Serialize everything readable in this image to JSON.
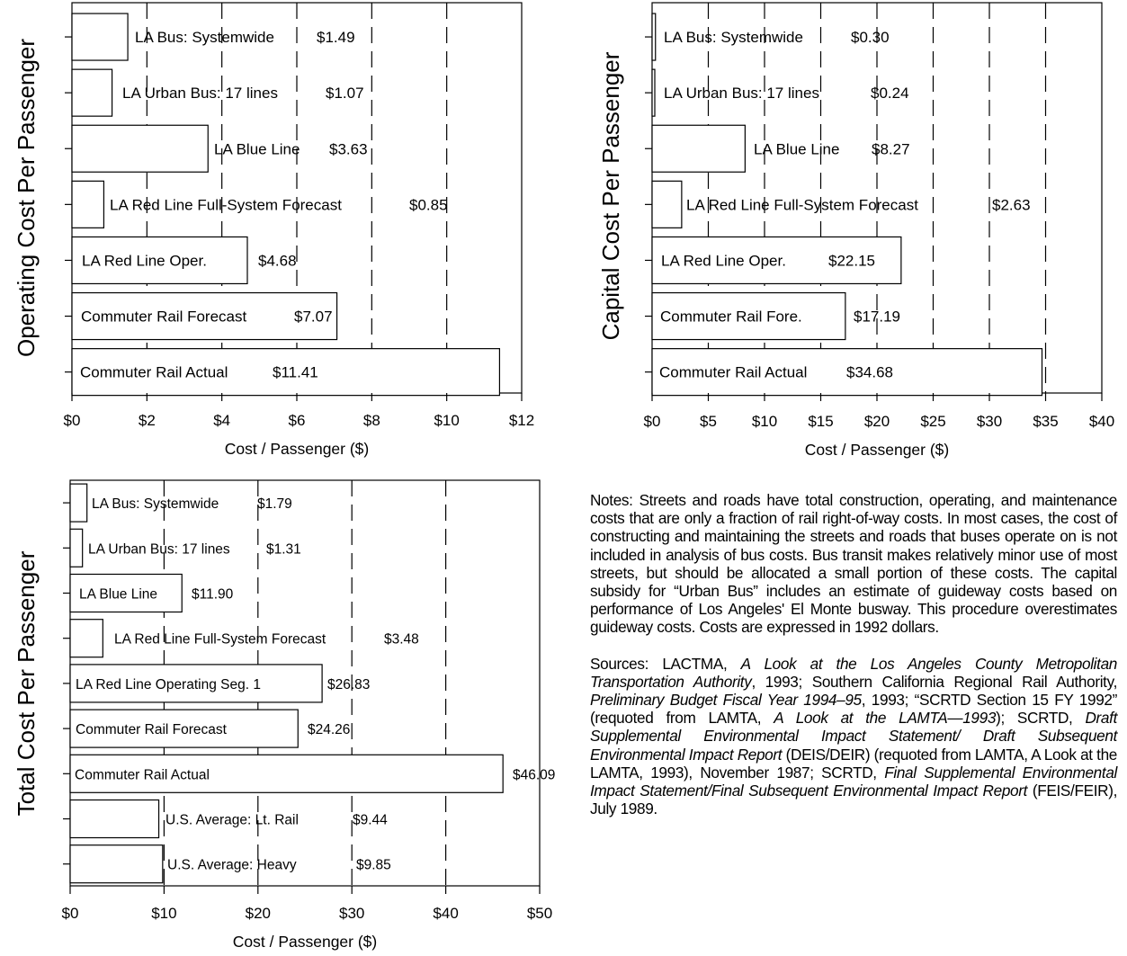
{
  "chart_data": [
    {
      "type": "bar",
      "orientation": "horizontal",
      "ylabel": "Operating Cost Per Passenger",
      "xlabel": "Cost / Passenger ($)",
      "xlim": [
        0,
        12
      ],
      "xticks": [
        "$0",
        "$2",
        "$4",
        "$6",
        "$8",
        "$10",
        "$12"
      ],
      "grid": "dashed vertical",
      "bars": [
        {
          "label": "LA Bus: Systemwide",
          "value": 1.49,
          "value_label": "$1.49"
        },
        {
          "label": "LA Urban Bus: 17 lines",
          "value": 1.07,
          "value_label": "$1.07"
        },
        {
          "label": "LA Blue Line",
          "value": 3.63,
          "value_label": "$3.63"
        },
        {
          "label": "LA Red Line Full-System Forecast",
          "value": 0.85,
          "value_label": "$0.85"
        },
        {
          "label": "LA Red Line Oper.",
          "value": 4.68,
          "value_label": "$4.68"
        },
        {
          "label": "Commuter Rail Forecast",
          "value": 7.07,
          "value_label": "$7.07"
        },
        {
          "label": "Commuter Rail Actual",
          "value": 11.41,
          "value_label": "$11.41"
        }
      ]
    },
    {
      "type": "bar",
      "orientation": "horizontal",
      "ylabel": "Capital Cost Per Passenger",
      "xlabel": "Cost / Passenger ($)",
      "xlim": [
        0,
        40
      ],
      "xticks": [
        "$0",
        "$5",
        "$10",
        "$15",
        "$20",
        "$25",
        "$30",
        "$35",
        "$40"
      ],
      "grid": "dashed vertical",
      "bars": [
        {
          "label": "LA Bus: Systemwide",
          "value": 0.3,
          "value_label": "$0.30"
        },
        {
          "label": "LA Urban Bus: 17 lines",
          "value": 0.24,
          "value_label": "$0.24"
        },
        {
          "label": "LA Blue Line",
          "value": 8.27,
          "value_label": "$8.27"
        },
        {
          "label": "LA Red Line Full-System Forecast",
          "value": 2.63,
          "value_label": "$2.63"
        },
        {
          "label": "LA Red Line Oper.",
          "value": 22.15,
          "value_label": "$22.15"
        },
        {
          "label": "Commuter Rail Fore.",
          "value": 17.19,
          "value_label": "$17.19"
        },
        {
          "label": "Commuter Rail Actual",
          "value": 34.68,
          "value_label": "$34.68"
        }
      ]
    },
    {
      "type": "bar",
      "orientation": "horizontal",
      "ylabel": "Total Cost Per Passenger",
      "xlabel": "Cost / Passenger ($)",
      "xlim": [
        0,
        50
      ],
      "xticks": [
        "$0",
        "$10",
        "$20",
        "$30",
        "$40",
        "$50"
      ],
      "grid": "dashed vertical",
      "bars": [
        {
          "label": "LA Bus: Systemwide",
          "value": 1.79,
          "value_label": "$1.79"
        },
        {
          "label": "LA Urban Bus: 17 lines",
          "value": 1.31,
          "value_label": "$1.31"
        },
        {
          "label": "LA Blue Line",
          "value": 11.9,
          "value_label": "$11.90"
        },
        {
          "label": "LA Red Line Full-System Forecast",
          "value": 3.48,
          "value_label": "$3.48"
        },
        {
          "label": "LA Red Line Operating Seg. 1",
          "value": 26.83,
          "value_label": "$26.83"
        },
        {
          "label": "Commuter Rail Forecast",
          "value": 24.26,
          "value_label": "$24.26"
        },
        {
          "label": "Commuter Rail Actual",
          "value": 46.09,
          "value_label": "$46.09"
        },
        {
          "label": "U.S. Average: Lt. Rail",
          "value": 9.44,
          "value_label": "$9.44"
        },
        {
          "label": "U.S. Average: Heavy",
          "value": 9.85,
          "value_label": "$9.85"
        }
      ]
    }
  ],
  "notes": {
    "text": "Notes: Streets and roads have total construction, operating, and maintenance costs that are only a fraction of rail right-of-way costs. In most cases, the cost of constructing and maintaining the streets and roads that buses operate on is not included in analysis of bus costs. Bus transit makes relatively minor use of most streets, but should be allocated a small portion of these costs. The capital subsidy for “Urban Bus” includes an estimate of guideway costs based on performance of Los Angeles' El Monte busway. This procedure overestimates guideway costs. Costs are expressed in 1992 dollars."
  },
  "sources": [
    {
      "text": "Sources: LACTMA, ",
      "italic": false
    },
    {
      "text": "A Look at the Los Angeles County Metropolitan Transportation Authority",
      "italic": true
    },
    {
      "text": ", 1993; Southern California Regional Rail Authority, ",
      "italic": false
    },
    {
      "text": "Preliminary Budget Fiscal Year 1994–95",
      "italic": true
    },
    {
      "text": ", 1993; “SCRTD Section 15 FY 1992” (requoted from LAMTA, ",
      "italic": false
    },
    {
      "text": "A Look at the LAMTA—1993",
      "italic": true
    },
    {
      "text": "); SCRTD, ",
      "italic": false
    },
    {
      "text": "Draft Supplemental Environmental Impact Statement/ Draft Subsequent Environmental Impact Report",
      "italic": true
    },
    {
      "text": " (DEIS/DEIR) (requoted from LAMTA, A Look at the LAMTA, 1993), November 1987; SCRTD, ",
      "italic": false
    },
    {
      "text": "Final Supplemental Environmental Impact Statement/Final Subsequent Environmental Impact Report",
      "italic": true
    },
    {
      "text": " (FEIS/FEIR), July 1989.",
      "italic": false
    }
  ]
}
